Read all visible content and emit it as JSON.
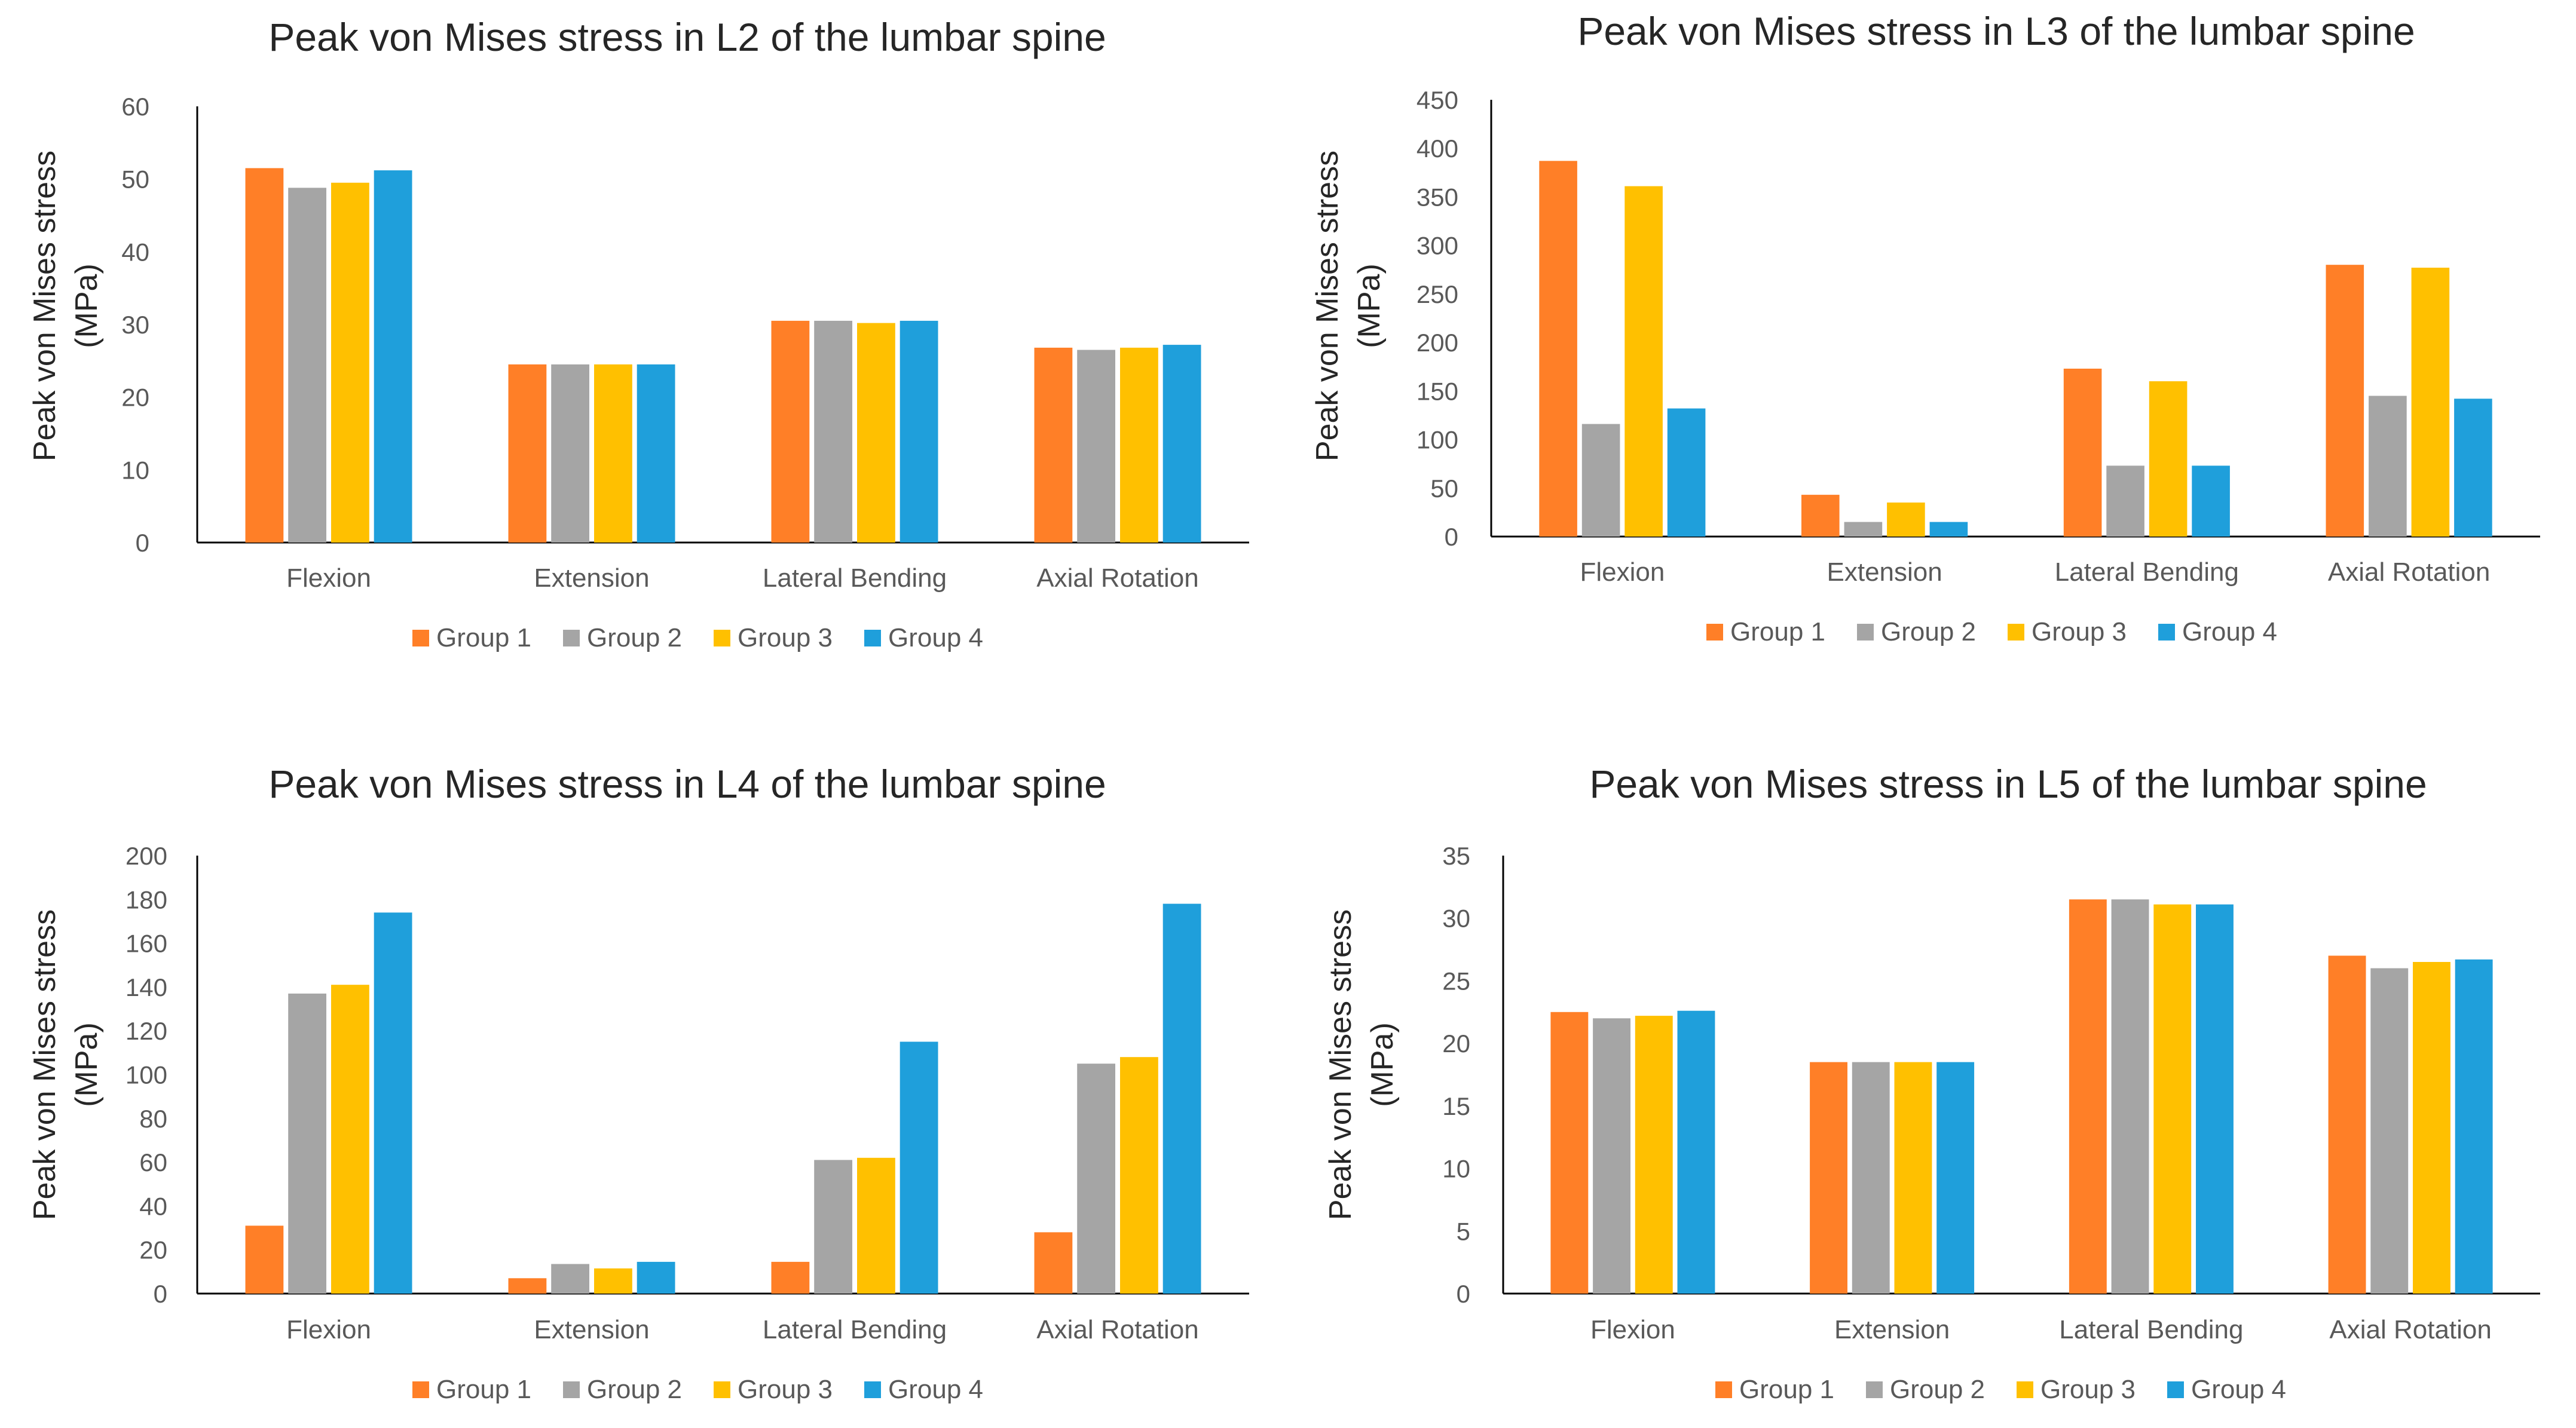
{
  "chart_data": [
    {
      "type": "bar",
      "title": "Peak von Mises stress in L2 of the lumbar spine",
      "ylabel_line1": "Peak von Mises stress",
      "ylabel_line2": "(MPa)",
      "xlabel": "",
      "categories": [
        "Flexion",
        "Extension",
        "Lateral Bending",
        "Axial Rotation"
      ],
      "ylim": [
        0,
        60
      ],
      "ticks": [
        0,
        10,
        20,
        30,
        40,
        50,
        60
      ],
      "grid": false,
      "legend": "bottom",
      "series": [
        {
          "name": "Group 1",
          "color": "#FF7F27",
          "values": [
            51.5,
            24.5,
            30.5,
            26.8
          ]
        },
        {
          "name": "Group 2",
          "color": "#A5A5A5",
          "values": [
            48.8,
            24.5,
            30.5,
            26.5
          ]
        },
        {
          "name": "Group 3",
          "color": "#FFC000",
          "values": [
            49.5,
            24.5,
            30.2,
            26.8
          ]
        },
        {
          "name": "Group 4",
          "color": "#1F9FDB",
          "values": [
            51.2,
            24.5,
            30.5,
            27.2
          ]
        }
      ]
    },
    {
      "type": "bar",
      "title": "Peak von Mises stress in L3 of the lumbar spine",
      "ylabel_line1": "Peak von Mises stress",
      "ylabel_line2": "(MPa)",
      "xlabel": "",
      "categories": [
        "Flexion",
        "Extension",
        "Lateral Bending",
        "Axial Rotation"
      ],
      "ylim": [
        0,
        450
      ],
      "ticks": [
        0,
        50,
        100,
        150,
        200,
        250,
        300,
        350,
        400,
        450
      ],
      "grid": false,
      "legend": "bottom",
      "series": [
        {
          "name": "Group 1",
          "color": "#FF7F27",
          "values": [
            387,
            43,
            173,
            280
          ]
        },
        {
          "name": "Group 2",
          "color": "#A5A5A5",
          "values": [
            116,
            15,
            73,
            145
          ]
        },
        {
          "name": "Group 3",
          "color": "#FFC000",
          "values": [
            361,
            35,
            160,
            277
          ]
        },
        {
          "name": "Group 4",
          "color": "#1F9FDB",
          "values": [
            132,
            15,
            73,
            142
          ]
        }
      ]
    },
    {
      "type": "bar",
      "title": "Peak von Mises stress in L4 of the lumbar spine",
      "ylabel_line1": "Peak von Mises stress",
      "ylabel_line2": "(MPa)",
      "xlabel": "",
      "categories": [
        "Flexion",
        "Extension",
        "Lateral Bending",
        "Axial Rotation"
      ],
      "ylim": [
        0,
        200
      ],
      "ticks": [
        0,
        20,
        40,
        60,
        80,
        100,
        120,
        140,
        160,
        180,
        200
      ],
      "grid": false,
      "legend": "bottom",
      "series": [
        {
          "name": "Group 1",
          "color": "#FF7F27",
          "values": [
            31,
            7,
            14.5,
            28
          ]
        },
        {
          "name": "Group 2",
          "color": "#A5A5A5",
          "values": [
            137,
            13.5,
            61,
            105
          ]
        },
        {
          "name": "Group 3",
          "color": "#FFC000",
          "values": [
            141,
            11.5,
            62,
            108
          ]
        },
        {
          "name": "Group 4",
          "color": "#1F9FDB",
          "values": [
            174,
            14.5,
            115,
            178
          ]
        }
      ]
    },
    {
      "type": "bar",
      "title": "Peak von Mises stress in L5 of the lumbar spine",
      "ylabel_line1": "Peak von Mises stress",
      "ylabel_line2": "(MPa)",
      "xlabel": "",
      "categories": [
        "Flexion",
        "Extension",
        "Lateral Bending",
        "Axial Rotation"
      ],
      "ylim": [
        0,
        35
      ],
      "ticks": [
        0,
        5,
        10,
        15,
        20,
        25,
        30,
        35
      ],
      "grid": false,
      "legend": "bottom",
      "series": [
        {
          "name": "Group 1",
          "color": "#FF7F27",
          "values": [
            22.5,
            18.5,
            31.5,
            27
          ]
        },
        {
          "name": "Group 2",
          "color": "#A5A5A5",
          "values": [
            22,
            18.5,
            31.5,
            26
          ]
        },
        {
          "name": "Group 3",
          "color": "#FFC000",
          "values": [
            22.2,
            18.5,
            31.1,
            26.5
          ]
        },
        {
          "name": "Group 4",
          "color": "#1F9FDB",
          "values": [
            22.6,
            18.5,
            31.1,
            26.7
          ]
        }
      ]
    }
  ]
}
